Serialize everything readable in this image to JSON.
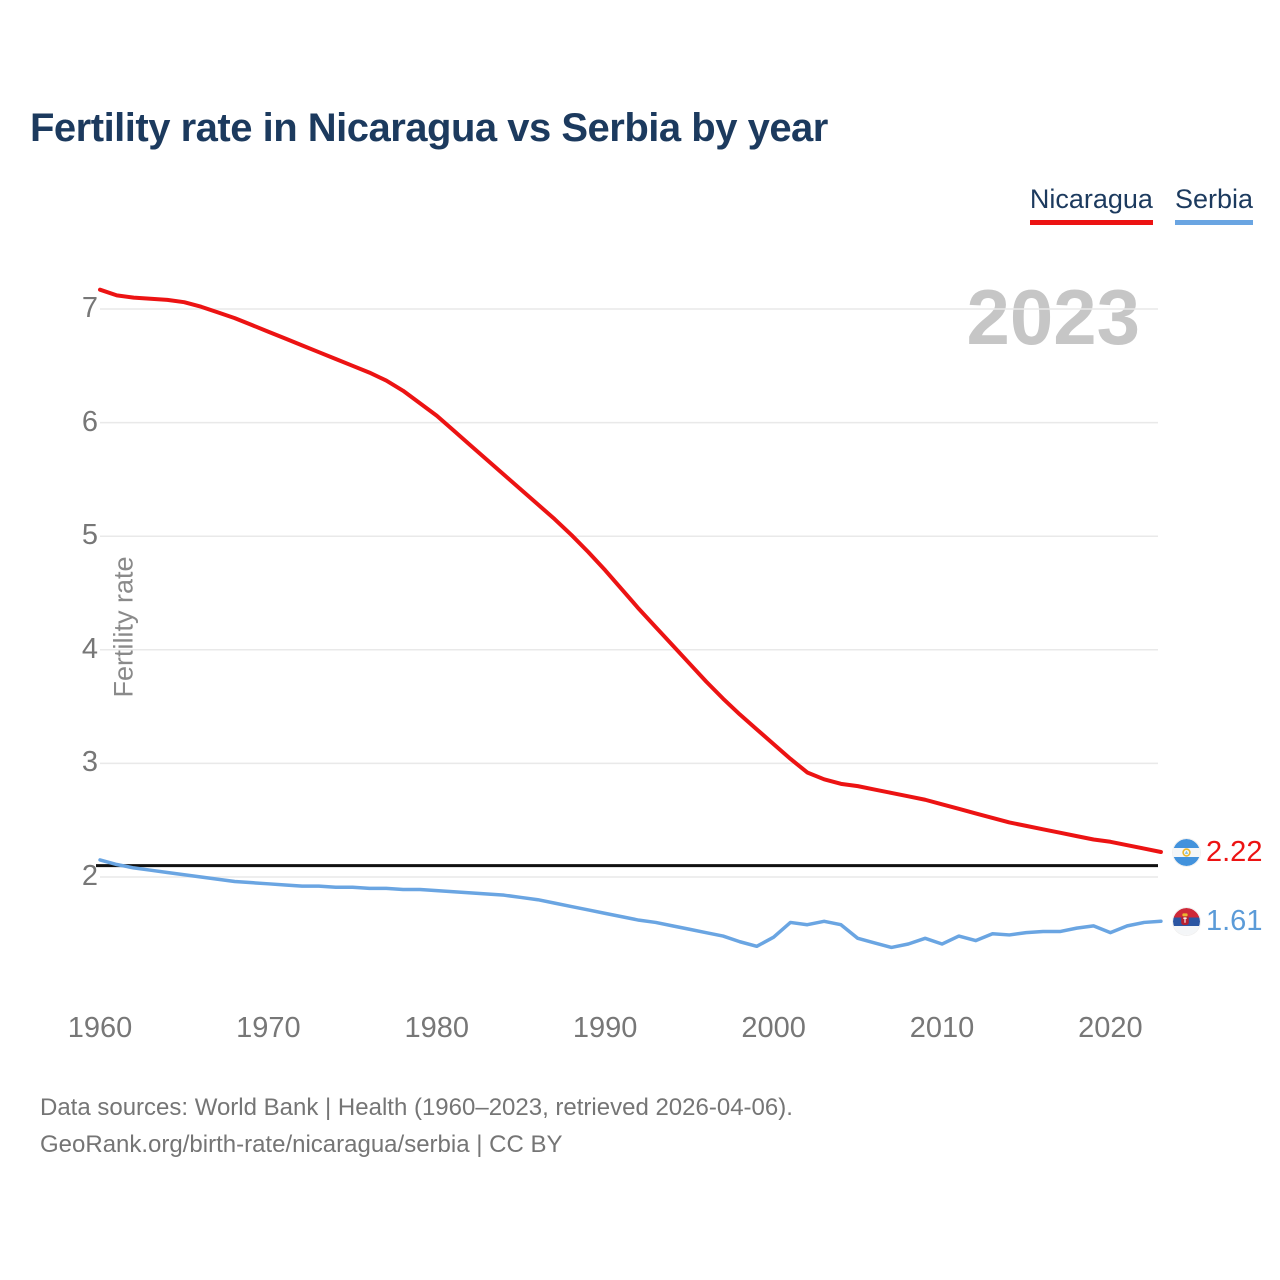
{
  "title": "Fertility rate in Nicaragua vs Serbia by year",
  "watermark_year": "2023",
  "legend": [
    {
      "label": "Nicaragua",
      "color": "#ec1313"
    },
    {
      "label": "Serbia",
      "color": "#6aa5e2"
    }
  ],
  "y_axis_title": "Fertility rate",
  "end_labels": [
    {
      "series": "Nicaragua",
      "value": "2.22",
      "color": "#ec1313",
      "flag_icon": "nicaragua-flag-icon"
    },
    {
      "series": "Serbia",
      "value": "1.61",
      "color": "#5b9bd8",
      "flag_icon": "serbia-flag-icon"
    }
  ],
  "footer": {
    "line1": "Data sources: World Bank | Health (1960–2023, retrieved 2026-04-06).",
    "line2": "GeoRank.org/birth-rate/nicaragua/serbia | CC BY"
  },
  "colors": {
    "nicaragua_line": "#ec1313",
    "serbia_line": "#6aa5e2",
    "reference_line": "#111111",
    "gridline": "#e9e9e9",
    "title_text": "#1c3a5e",
    "axis_text": "#777777",
    "watermark": "#c6c6c6",
    "footer_text": "#757575"
  },
  "chart_data": {
    "type": "line",
    "title": "Fertility rate in Nicaragua vs Serbia by year",
    "ylabel": "Fertility rate",
    "xlabel": "",
    "grid": "horizontal",
    "legend_position": "top-right",
    "xlim": [
      1960,
      2023
    ],
    "ylim": [
      1.1,
      7.4
    ],
    "xticks": [
      1960,
      1970,
      1980,
      1990,
      2000,
      2010,
      2020
    ],
    "yticks": [
      2,
      3,
      4,
      5,
      6,
      7
    ],
    "reference_line": {
      "value": 2.1,
      "color": "#111111"
    },
    "x": [
      1960,
      1961,
      1962,
      1963,
      1964,
      1965,
      1966,
      1967,
      1968,
      1969,
      1970,
      1971,
      1972,
      1973,
      1974,
      1975,
      1976,
      1977,
      1978,
      1979,
      1980,
      1981,
      1982,
      1983,
      1984,
      1985,
      1986,
      1987,
      1988,
      1989,
      1990,
      1991,
      1992,
      1993,
      1994,
      1995,
      1996,
      1997,
      1998,
      1999,
      2000,
      2001,
      2002,
      2003,
      2004,
      2005,
      2006,
      2007,
      2008,
      2009,
      2010,
      2011,
      2012,
      2013,
      2014,
      2015,
      2016,
      2017,
      2018,
      2019,
      2020,
      2021,
      2022,
      2023
    ],
    "series": [
      {
        "name": "Nicaragua",
        "color": "#ec1313",
        "final_value": 2.22,
        "values": [
          7.17,
          7.12,
          7.1,
          7.09,
          7.08,
          7.06,
          7.02,
          6.97,
          6.92,
          6.86,
          6.8,
          6.74,
          6.68,
          6.62,
          6.56,
          6.5,
          6.44,
          6.37,
          6.28,
          6.17,
          6.06,
          5.93,
          5.8,
          5.67,
          5.54,
          5.41,
          5.28,
          5.15,
          5.01,
          4.86,
          4.7,
          4.53,
          4.36,
          4.2,
          4.04,
          3.88,
          3.72,
          3.57,
          3.43,
          3.3,
          3.17,
          3.04,
          2.92,
          2.86,
          2.82,
          2.8,
          2.77,
          2.74,
          2.71,
          2.68,
          2.64,
          2.6,
          2.56,
          2.52,
          2.48,
          2.45,
          2.42,
          2.39,
          2.36,
          2.33,
          2.31,
          2.28,
          2.25,
          2.22
        ]
      },
      {
        "name": "Serbia",
        "color": "#6aa5e2",
        "final_value": 1.61,
        "values": [
          2.15,
          2.11,
          2.08,
          2.06,
          2.04,
          2.02,
          2.0,
          1.98,
          1.96,
          1.95,
          1.94,
          1.93,
          1.92,
          1.92,
          1.91,
          1.91,
          1.9,
          1.9,
          1.89,
          1.89,
          1.88,
          1.87,
          1.86,
          1.85,
          1.84,
          1.82,
          1.8,
          1.77,
          1.74,
          1.71,
          1.68,
          1.65,
          1.62,
          1.6,
          1.57,
          1.54,
          1.51,
          1.48,
          1.43,
          1.39,
          1.47,
          1.6,
          1.58,
          1.61,
          1.58,
          1.46,
          1.42,
          1.38,
          1.41,
          1.46,
          1.41,
          1.48,
          1.44,
          1.5,
          1.49,
          1.51,
          1.52,
          1.52,
          1.55,
          1.57,
          1.51,
          1.57,
          1.6,
          1.61
        ]
      }
    ]
  }
}
